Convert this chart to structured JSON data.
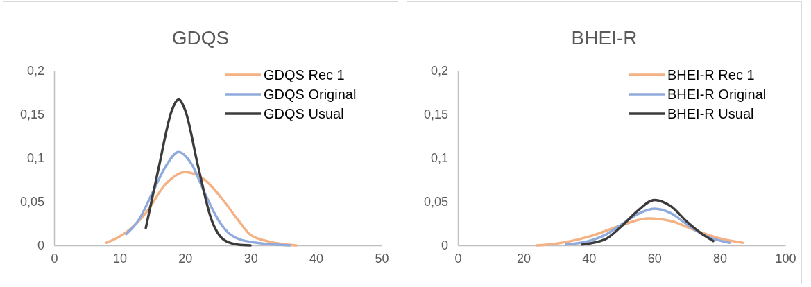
{
  "chart_data": [
    {
      "type": "line",
      "title": "GDQS",
      "xlim": [
        0,
        50
      ],
      "xticks": [
        0,
        10,
        20,
        30,
        40,
        50
      ],
      "ylim": [
        0,
        0.2
      ],
      "yticks": [
        0,
        {
          "value": 0.05,
          "label": "0,05"
        },
        {
          "value": 0.1,
          "label": "0,1"
        },
        {
          "value": 0.15,
          "label": "0,15"
        },
        {
          "value": 0.2,
          "label": "0,2"
        }
      ],
      "grid": false,
      "legend": "top right",
      "marker": "none",
      "line_style": "solid",
      "series": [
        {
          "name": "GDQS Rec 1",
          "color": "#f4b183",
          "x": [
            8,
            11,
            14,
            17,
            20,
            23,
            26,
            28,
            30,
            33,
            37
          ],
          "values": [
            0.003,
            0.015,
            0.037,
            0.07,
            0.084,
            0.075,
            0.05,
            0.03,
            0.012,
            0.004,
            0
          ]
        },
        {
          "name": "GDQS Original",
          "color": "#8faadc",
          "x": [
            11,
            13,
            15,
            17,
            19,
            21,
            23,
            25,
            27,
            30,
            36
          ],
          "values": [
            0.013,
            0.03,
            0.06,
            0.09,
            0.107,
            0.093,
            0.06,
            0.03,
            0.012,
            0.004,
            0
          ]
        },
        {
          "name": "GDQS Usual",
          "color": "#3b3b3b",
          "x": [
            14,
            16,
            18,
            19,
            20,
            22,
            24,
            26,
            28,
            30
          ],
          "values": [
            0.02,
            0.09,
            0.155,
            0.167,
            0.155,
            0.09,
            0.03,
            0.006,
            0.001,
            0
          ]
        }
      ]
    },
    {
      "type": "line",
      "title": "BHEI-R",
      "xlim": [
        0,
        100
      ],
      "xticks": [
        0,
        20,
        40,
        60,
        80,
        100
      ],
      "ylim": [
        0,
        0.2
      ],
      "yticks": [
        0,
        {
          "value": 0.05,
          "label": "0,05"
        },
        {
          "value": 0.1,
          "label": "0,1"
        },
        {
          "value": 0.15,
          "label": "0,15"
        },
        {
          "value": 0.2,
          "label": "0,2"
        }
      ],
      "grid": false,
      "legend": "top right",
      "marker": "none",
      "line_style": "solid",
      "series": [
        {
          "name": "BHEI-R Rec 1",
          "color": "#f4b183",
          "x": [
            24,
            30,
            40,
            50,
            58,
            65,
            72,
            80,
            87
          ],
          "values": [
            0,
            0.002,
            0.01,
            0.023,
            0.031,
            0.028,
            0.018,
            0.008,
            0.003
          ]
        },
        {
          "name": "BHEI-R Original",
          "color": "#8faadc",
          "x": [
            33,
            40,
            45,
            50,
            55,
            60,
            65,
            70,
            75,
            83
          ],
          "values": [
            0.001,
            0.005,
            0.012,
            0.024,
            0.036,
            0.042,
            0.037,
            0.024,
            0.012,
            0.003
          ]
        },
        {
          "name": "BHEI-R Usual",
          "color": "#3b3b3b",
          "x": [
            38,
            45,
            50,
            55,
            60,
            65,
            70,
            75,
            78
          ],
          "values": [
            0.001,
            0.007,
            0.022,
            0.04,
            0.052,
            0.045,
            0.027,
            0.012,
            0.005
          ]
        }
      ]
    }
  ]
}
